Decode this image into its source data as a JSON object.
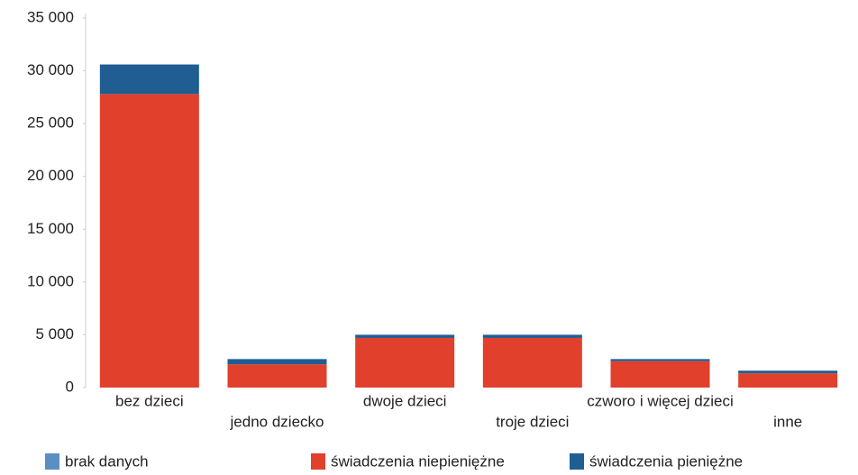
{
  "chart_data": {
    "type": "stacked_bar",
    "categories": [
      "bez dzieci",
      "jedno dziecko",
      "dwoje dzieci",
      "troje dzieci",
      "czworo i więcej dzieci",
      "inne"
    ],
    "series": [
      {
        "name": "brak danych",
        "color": "#5b8fc4",
        "values": [
          0,
          0,
          0,
          0,
          0,
          0
        ]
      },
      {
        "name": "świadczenia niepieniężne",
        "color": "#e0402c",
        "values": [
          27800,
          2200,
          4700,
          4700,
          2500,
          1350
        ]
      },
      {
        "name": "świadczenia pieniężne",
        "color": "#1f5d93",
        "values": [
          2800,
          500,
          300,
          300,
          200,
          250
        ]
      }
    ],
    "ylim": [
      0,
      35000
    ],
    "yticks": [
      0,
      {
        "value": 5000,
        "label": "5 000"
      },
      {
        "value": 10000,
        "label": "10 000"
      },
      {
        "value": 15000,
        "label": "15 000"
      },
      {
        "value": 20000,
        "label": "20 000"
      },
      {
        "value": 25000,
        "label": "25 000"
      },
      {
        "value": 30000,
        "label": "30 000"
      },
      {
        "value": 35000,
        "label": "35 000"
      }
    ],
    "grid": false
  }
}
